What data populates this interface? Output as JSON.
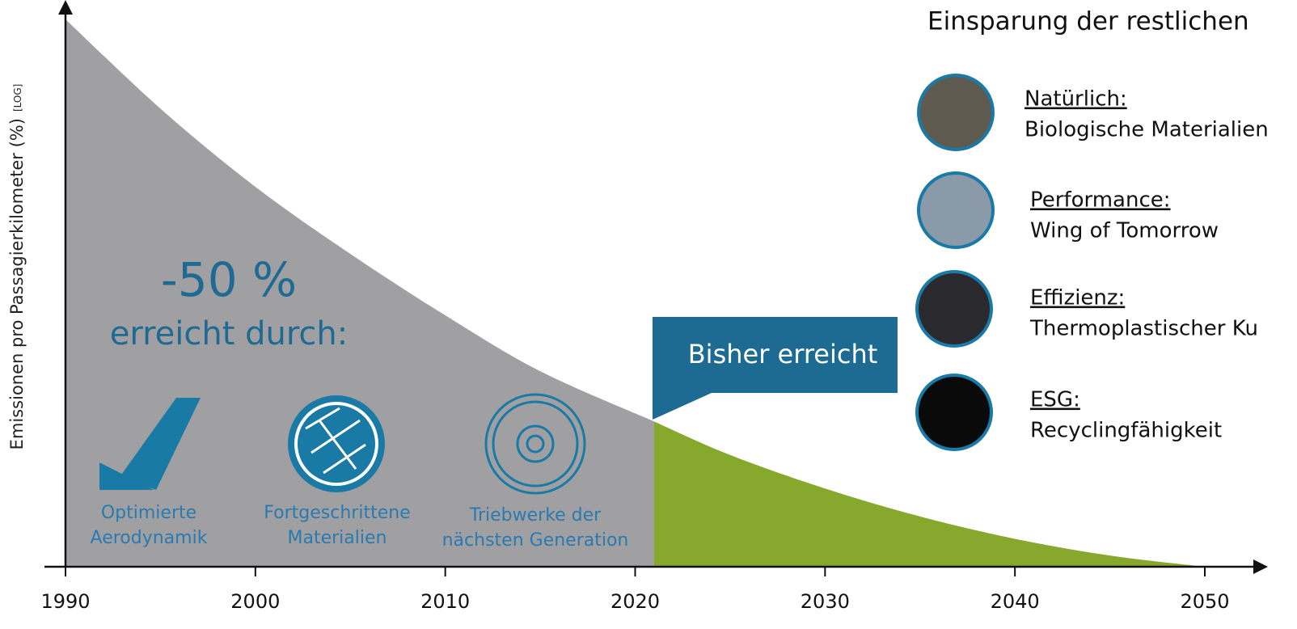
{
  "chart_data": {
    "type": "area",
    "ylabel": "Emissionen pro Passagierkilometer (%)",
    "ylabel_note": "[LOG]",
    "log_scale": true,
    "xlim": [
      1990,
      2053
    ],
    "xticks": [
      1990,
      2000,
      2010,
      2020,
      2030,
      2040,
      2050
    ],
    "ylim": [
      0,
      100
    ],
    "series": [
      {
        "name": "Bisher erreicht",
        "color": "#a0a0a2",
        "x": [
          1990,
          1995,
          2000,
          2005,
          2010,
          2015,
          2021
        ],
        "values": [
          98,
          82,
          68,
          56,
          45,
          35,
          26
        ]
      },
      {
        "color": "#86a82c",
        "x": [
          2021,
          2025,
          2030,
          2035,
          2040,
          2045,
          2050
        ],
        "values": [
          26,
          20,
          14,
          9,
          5,
          2,
          0
        ]
      }
    ],
    "annotations": {
      "reduction": "-50 %",
      "reduction_text": "erreicht durch:"
    },
    "levers": [
      {
        "line1": "Optimierte",
        "line2": "Aerodynamik"
      },
      {
        "line1": "Fortgeschrittene",
        "line2": "Materialien"
      },
      {
        "line1": "Triebwerke der",
        "line2": "nächsten Generation"
      }
    ]
  },
  "side_panel": {
    "title": "Einsparung der restlichen",
    "items": [
      {
        "heading": "Natürlich:",
        "text": "Biologische Materialien"
      },
      {
        "heading": "Performance:",
        "text": "Wing of Tomorrow"
      },
      {
        "heading": "Effizienz:",
        "text": "Thermoplastischer Ku"
      },
      {
        "heading": "ESG:",
        "text": "Recyclingfähigkeit"
      }
    ]
  }
}
